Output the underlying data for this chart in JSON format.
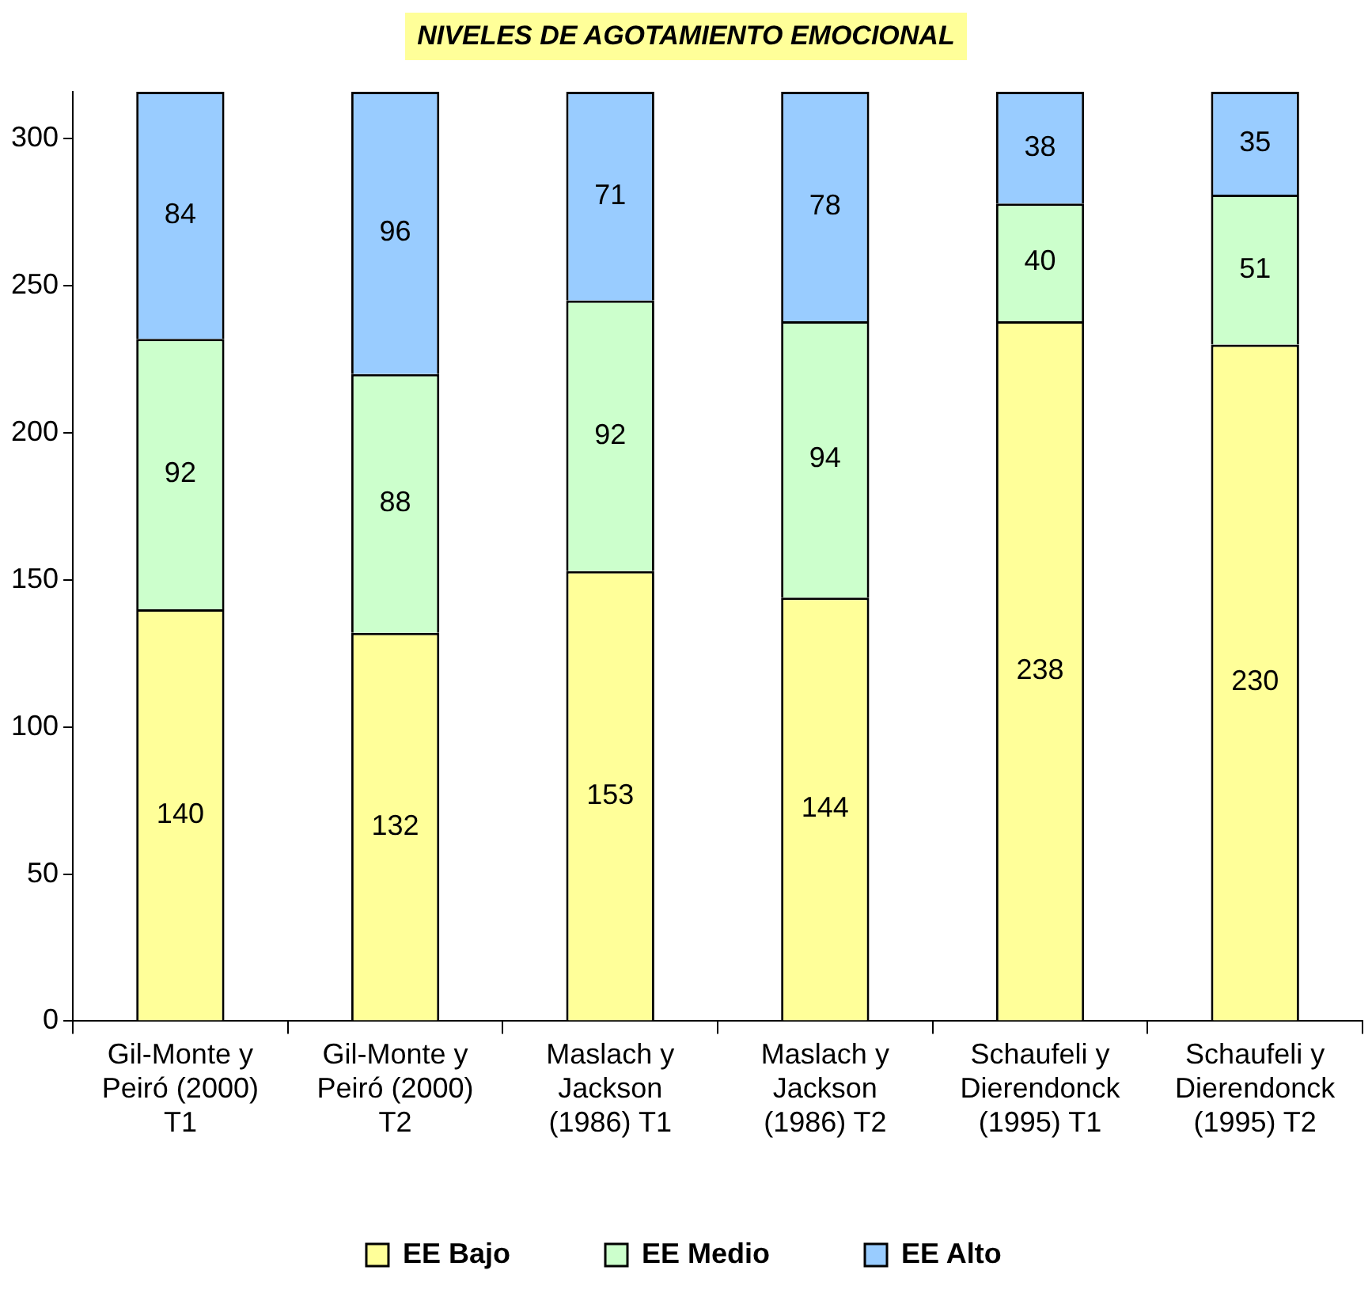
{
  "chart_data": {
    "type": "bar",
    "title": "NIVELES DE AGOTAMIENTO EMOCIONAL",
    "categories": [
      "Gil-Monte y\nPeiró (2000)\nT1",
      "Gil-Monte y\nPeiró (2000)\nT2",
      "Maslach y\nJackson\n(1986) T1",
      "Maslach y\nJackson\n(1986) T2",
      "Schaufeli y\nDierendonck\n(1995) T1",
      "Schaufeli y\nDierendonck\n(1995) T2"
    ],
    "series": [
      {
        "name": "EE Bajo",
        "color": "#ffff99",
        "values": [
          140,
          132,
          153,
          144,
          238,
          230
        ]
      },
      {
        "name": "EE Medio",
        "color": "#ccffcc",
        "values": [
          92,
          88,
          92,
          94,
          40,
          51
        ]
      },
      {
        "name": "EE Alto",
        "color": "#99ccff",
        "values": [
          84,
          96,
          71,
          78,
          38,
          35
        ]
      }
    ],
    "stacked": true,
    "ylim": [
      0,
      316
    ],
    "yticks": [
      0,
      50,
      100,
      150,
      200,
      250,
      300
    ],
    "grid": false,
    "legend": "bottom",
    "data_labels": true
  }
}
